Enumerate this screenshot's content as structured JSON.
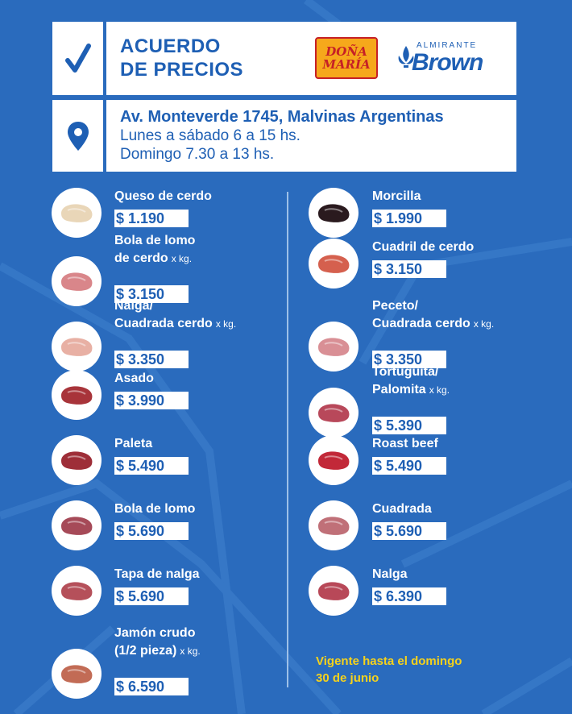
{
  "header": {
    "title_line1": "ACUERDO",
    "title_line2": "DE PRECIOS",
    "logo_dm_line1": "DOÑA",
    "logo_dm_line2": "MARÍA",
    "logo_ab_small": "ALMIRANTE",
    "logo_ab_big": "Brown",
    "address": "Av. Monteverde 1745, Malvinas Argentinas",
    "hours1": "Lunes a sábado 6 a 15 hs.",
    "hours2": "Domingo 7.30 a 13 hs."
  },
  "unit": "x kg.",
  "left": [
    {
      "name1": "Queso de cerdo",
      "name2": "",
      "price": "$ 1.190",
      "icon": "queso-de-cerdo-icon",
      "color": "#e9d6b8"
    },
    {
      "name1": "Bola de lomo",
      "name2": "de cerdo",
      "price": "$ 3.150",
      "icon": "bola-de-lomo-cerdo-icon",
      "color": "#d9868a"
    },
    {
      "name1": "Nalga/",
      "name2": "Cuadrada cerdo",
      "price": "$ 3.350",
      "icon": "nalga-cuadrada-cerdo-icon",
      "color": "#e8b0a4"
    },
    {
      "name1": "Asado",
      "name2": "",
      "price": "$ 3.990",
      "icon": "asado-icon",
      "color": "#a8343a"
    },
    {
      "name1": "Paleta",
      "name2": "",
      "price": "$ 5.490",
      "icon": "paleta-icon",
      "color": "#9e2e38"
    },
    {
      "name1": "Bola de lomo",
      "name2": "",
      "price": "$ 5.690",
      "icon": "bola-de-lomo-icon",
      "color": "#a64a58"
    },
    {
      "name1": "Tapa de nalga",
      "name2": "",
      "price": "$ 5.690",
      "icon": "tapa-de-nalga-icon",
      "color": "#b5505a"
    },
    {
      "name1": "Jamón crudo",
      "name2": "(1/2 pieza)",
      "price": "$ 6.590",
      "icon": "jamon-crudo-icon",
      "color": "#c26b55"
    }
  ],
  "right": [
    {
      "name1": "Morcilla",
      "name2": "",
      "price": "$ 1.990",
      "icon": "morcilla-icon",
      "color": "#2a1a1e"
    },
    {
      "name1": "Cuadril de cerdo",
      "name2": "",
      "price": "$ 3.150",
      "icon": "cuadril-de-cerdo-icon",
      "color": "#d5604e"
    },
    {
      "name1": "Peceto/",
      "name2": "Cuadrada cerdo",
      "price": "$ 3.350",
      "icon": "peceto-cuadrada-cerdo-icon",
      "color": "#d98f95"
    },
    {
      "name1": "Tortuguita/",
      "name2": "Palomita",
      "price": "$ 5.390",
      "icon": "tortuguita-palomita-icon",
      "color": "#b8485a"
    },
    {
      "name1": "Roast beef",
      "name2": "",
      "price": "$ 5.490",
      "icon": "roast-beef-icon",
      "color": "#c22838"
    },
    {
      "name1": "Cuadrada",
      "name2": "",
      "price": "$ 5.690",
      "icon": "cuadrada-icon",
      "color": "#c07078"
    },
    {
      "name1": "Nalga",
      "name2": "",
      "price": "$ 6.390",
      "icon": "nalga-icon",
      "color": "#b84858"
    }
  ],
  "footer": {
    "vigente1": "Vigente hasta el domingo",
    "vigente2": "30 de junio"
  }
}
